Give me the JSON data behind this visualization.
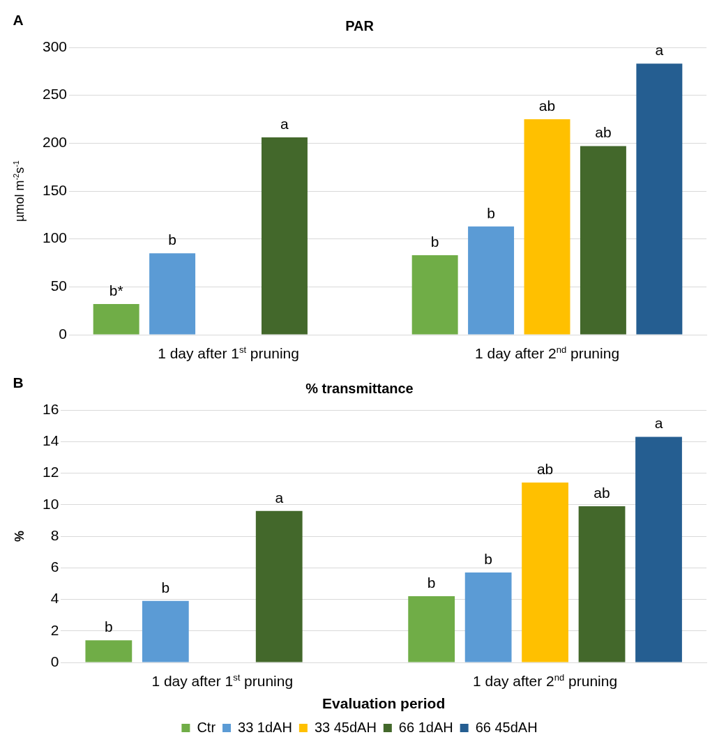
{
  "chart_data": [
    {
      "type": "bar",
      "title": "PAR",
      "ylabel": "µmol m$^{-2}$s$^{-1}$",
      "categories": [
        "1 day after 1$^{st}$ pruning",
        "1 day after 2$^{nd}$ pruning"
      ],
      "series": [
        {
          "color": "#70ad47",
          "values": [
            32,
            83
          ],
          "value_labels": [
            "b*",
            "b"
          ]
        },
        {
          "color": "#5b9bd5",
          "values": [
            85,
            113
          ],
          "value_labels": [
            "b",
            "b"
          ]
        },
        {
          "color": "#ffc000",
          "values": [
            null,
            225
          ],
          "value_labels": [
            null,
            "ab"
          ]
        },
        {
          "color": "#43682b",
          "values": [
            206,
            197
          ],
          "value_labels": [
            "a",
            "ab"
          ]
        },
        {
          "color": "#255e91",
          "values": [
            null,
            283
          ],
          "value_labels": [
            null,
            "a"
          ]
        }
      ],
      "ylim": [
        0,
        300
      ],
      "yticks": [
        0,
        50,
        100,
        150,
        200,
        250,
        300
      ],
      "grid": "y",
      "legend": false,
      "annotations": [
        "A"
      ]
    },
    {
      "type": "bar",
      "title": "% transmittance",
      "ylabel": "%",
      "xlabel": "Evaluation period",
      "categories": [
        "1 day after 1$^{st}$ pruning",
        "1 day after 2$^{nd}$ pruning"
      ],
      "series": [
        {
          "name": "Ctr",
          "color": "#70ad47",
          "values": [
            1.4,
            4.2
          ],
          "value_labels": [
            "b",
            "b"
          ]
        },
        {
          "name": "33 1dAH",
          "color": "#5b9bd5",
          "values": [
            3.9,
            5.7
          ],
          "value_labels": [
            "b",
            "b"
          ]
        },
        {
          "name": "33 45dAH",
          "color": "#ffc000",
          "values": [
            null,
            11.4
          ],
          "value_labels": [
            null,
            "ab"
          ]
        },
        {
          "name": "66 1dAH",
          "color": "#43682b",
          "values": [
            9.6,
            9.9
          ],
          "value_labels": [
            "a",
            "ab"
          ]
        },
        {
          "name": "66 45dAH",
          "color": "#255e91",
          "values": [
            null,
            14.3
          ],
          "value_labels": [
            null,
            "a"
          ]
        }
      ],
      "ylim": [
        0,
        16
      ],
      "yticks": [
        0,
        2,
        4,
        6,
        8,
        10,
        12,
        14,
        16
      ],
      "grid": "y",
      "legend": "bottom",
      "annotations": [
        "B"
      ]
    }
  ]
}
